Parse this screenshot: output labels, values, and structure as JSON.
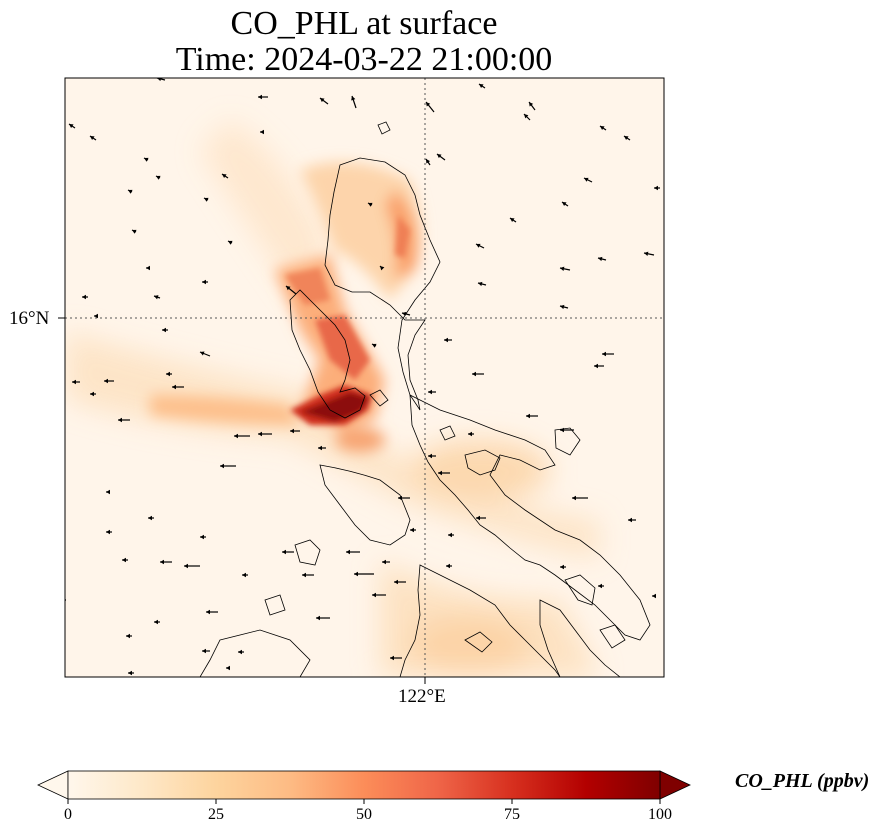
{
  "title": {
    "line1": "CO_PHL at surface",
    "line2": "Time: 2024-03-22 21:00:00"
  },
  "axes": {
    "lat_tick_label": "16°N",
    "lon_tick_label": "122°E"
  },
  "colorbar": {
    "label": "CO_PHL (ppbv)",
    "ticks": [
      "0",
      "25",
      "50",
      "75",
      "100"
    ],
    "min": 0,
    "max": 100,
    "colormap": "OrRd",
    "extend": "both"
  },
  "colors": {
    "cmap_low": "#fff7ec",
    "cmap_25": "#fdd49e",
    "cmap_50": "#fc8d59",
    "cmap_75": "#d7301f",
    "cmap_high": "#7f0000",
    "coastline": "#000000",
    "gridline": "#555555"
  }
}
